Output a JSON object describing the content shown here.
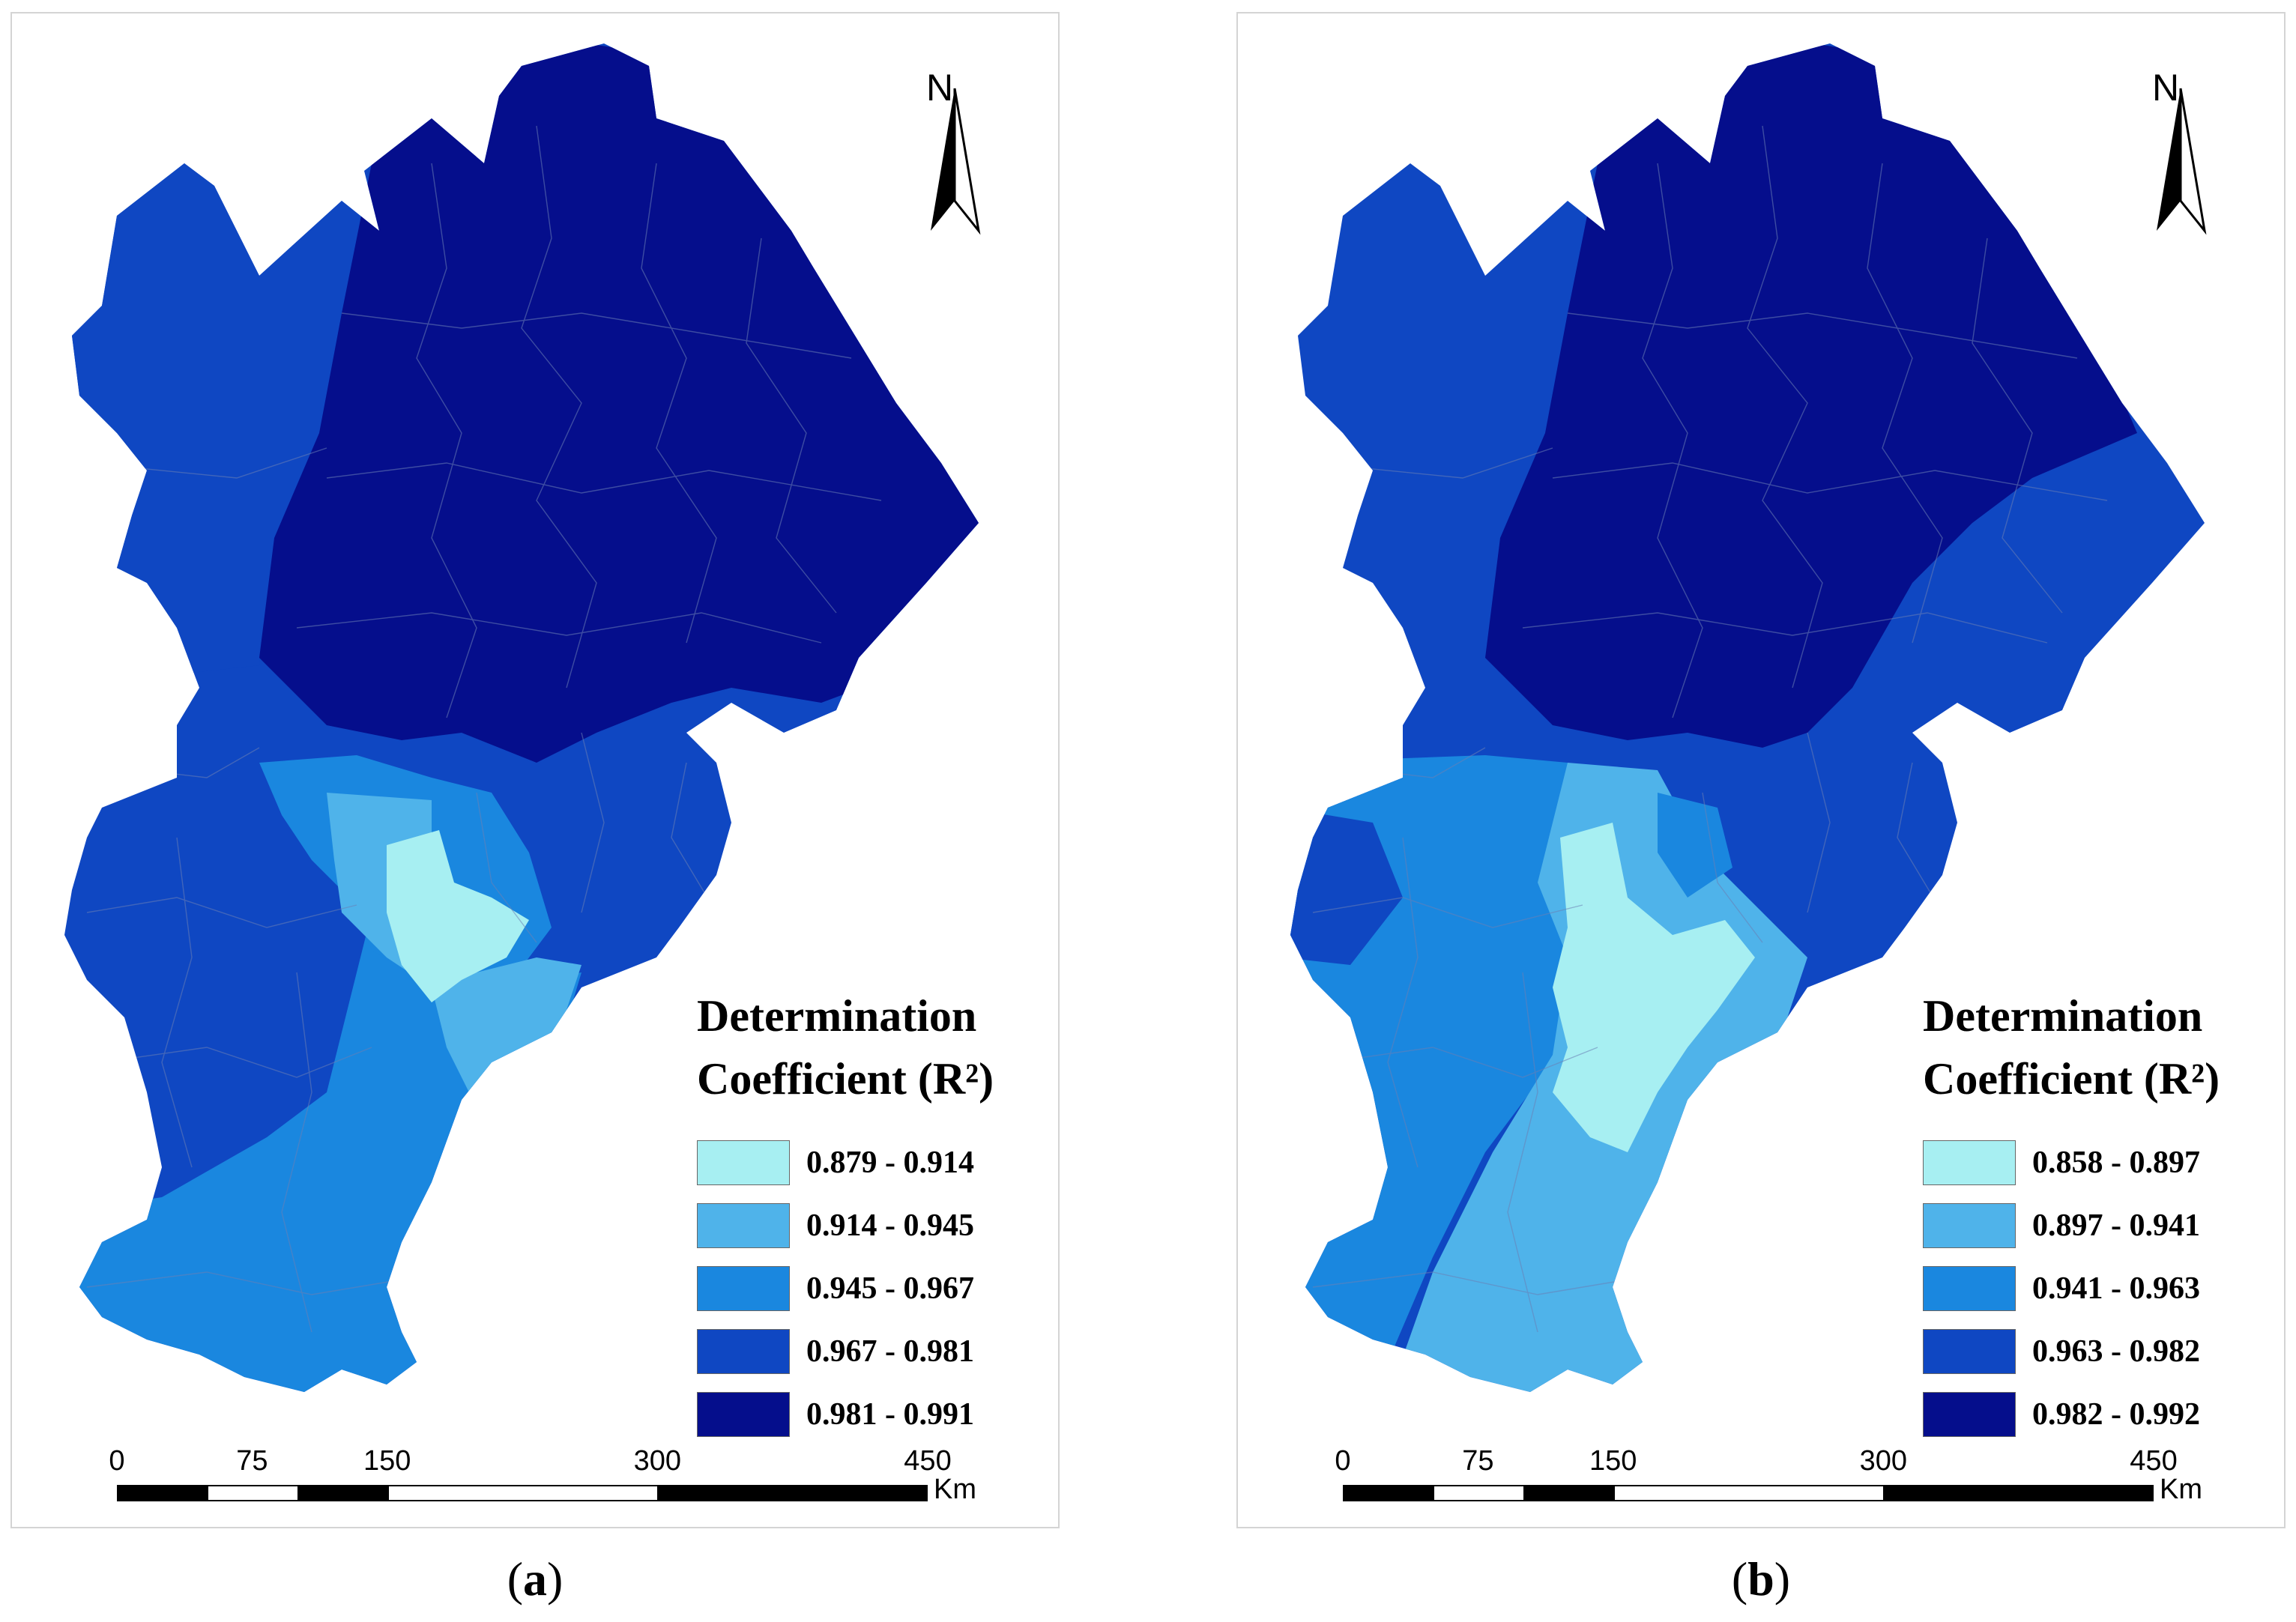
{
  "panels": [
    {
      "id": "a",
      "caption_letter": "a",
      "north_label": "N",
      "legend": {
        "title_line1": "Determination",
        "title_line2": "Coefficient (R²)",
        "items": [
          {
            "label": "0.879 - 0.914",
            "color": "#a7eff2"
          },
          {
            "label": "0.914 - 0.945",
            "color": "#4fb3ea"
          },
          {
            "label": "0.945 - 0.967",
            "color": "#1a87df"
          },
          {
            "label": "0.967 - 0.981",
            "color": "#0f47c2"
          },
          {
            "label": "0.981 - 0.991",
            "color": "#050e8c"
          }
        ]
      },
      "scale": {
        "ticks": [
          "0",
          "75",
          "150",
          "300",
          "450"
        ],
        "unit": "Km"
      }
    },
    {
      "id": "b",
      "caption_letter": "b",
      "north_label": "N",
      "legend": {
        "title_line1": "Determination",
        "title_line2": "Coefficient (R²)",
        "items": [
          {
            "label": "0.858 - 0.897",
            "color": "#a7eff2"
          },
          {
            "label": "0.897 - 0.941",
            "color": "#4fb3ea"
          },
          {
            "label": "0.941 - 0.963",
            "color": "#1a87df"
          },
          {
            "label": "0.963 - 0.982",
            "color": "#0f47c2"
          },
          {
            "label": "0.982 - 0.992",
            "color": "#050e8c"
          }
        ]
      },
      "scale": {
        "ticks": [
          "0",
          "75",
          "150",
          "300",
          "450"
        ],
        "unit": "Km"
      }
    }
  ]
}
